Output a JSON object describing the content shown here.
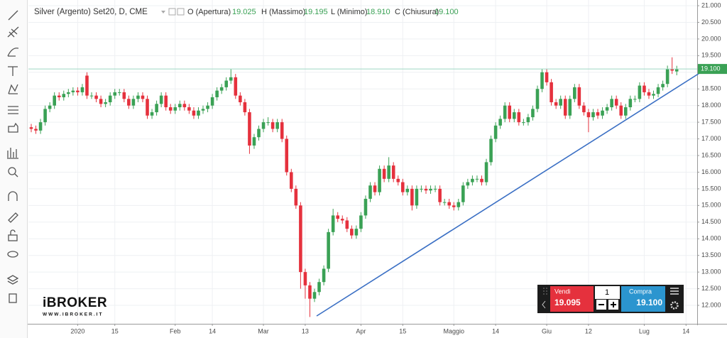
{
  "chart_data": {
    "type": "candlestick",
    "title": "Silver (Argento) Set20, D, CME",
    "ohlc_legend": [
      {
        "label": "O (Apertura)",
        "value": "19.025"
      },
      {
        "label": "H (Massimo)",
        "value": "19.195"
      },
      {
        "label": "L (Minimo)",
        "value": "18.910"
      },
      {
        "label": "C (Chiusura)",
        "value": "19.100"
      }
    ],
    "up_color": "#3aa155",
    "down_color": "#e5313d",
    "open": [
      17.35,
      17.3,
      17.25,
      17.5,
      17.9,
      18.0,
      18.3,
      18.25,
      18.35,
      18.4,
      18.45,
      18.4,
      18.9,
      18.3,
      18.3,
      18.2,
      18.05,
      18.1,
      18.3,
      18.4,
      18.4,
      18.2,
      18.0,
      18.2,
      18.3,
      18.2,
      17.7,
      17.8,
      18.05,
      18.3,
      17.95,
      17.85,
      17.95,
      18.05,
      17.95,
      17.85,
      17.7,
      17.85,
      17.9,
      18.0,
      18.25,
      18.45,
      18.55,
      18.75,
      18.85,
      18.3,
      18.1,
      17.8,
      16.8,
      17.05,
      17.3,
      17.5,
      17.5,
      17.3,
      17.5,
      17.0,
      16.0,
      15.5,
      15.0,
      13.0,
      12.6,
      12.2,
      12.4,
      12.7,
      13.1,
      14.2,
      14.7,
      14.6,
      14.55,
      14.3,
      14.1,
      14.3,
      14.7,
      15.2,
      15.6,
      15.4,
      16.1,
      15.8,
      16.2,
      15.8,
      15.7,
      15.4,
      15.5,
      15.0,
      15.5,
      15.5,
      15.45,
      15.5,
      15.5,
      15.1,
      15.1,
      15.0,
      14.95,
      15.1,
      15.6,
      15.7,
      15.8,
      15.8,
      15.7,
      16.3,
      17.0,
      17.4,
      17.6,
      18.0,
      17.6,
      17.8,
      17.5,
      17.5,
      17.65,
      17.9,
      18.5,
      19.0,
      18.7,
      18.1,
      18.0,
      18.2,
      17.7,
      18.2,
      18.55,
      18.0,
      17.8,
      17.65,
      17.8,
      17.7,
      17.85,
      17.95,
      18.2,
      18.0,
      17.7,
      17.95,
      18.2,
      18.2,
      18.6,
      18.4,
      18.3,
      18.35,
      18.55,
      18.65,
      19.1,
      19.025
    ],
    "high": [
      17.45,
      17.4,
      17.6,
      18.0,
      18.1,
      18.4,
      18.4,
      18.45,
      18.5,
      18.55,
      18.55,
      18.65,
      19.0,
      18.4,
      18.4,
      18.3,
      18.2,
      18.4,
      18.5,
      18.5,
      18.5,
      18.3,
      18.3,
      18.4,
      18.4,
      18.3,
      17.9,
      18.15,
      18.4,
      18.4,
      18.05,
      18.05,
      18.15,
      18.15,
      18.05,
      17.95,
      17.95,
      18.0,
      18.1,
      18.35,
      18.55,
      18.65,
      18.85,
      19.1,
      18.95,
      18.4,
      18.2,
      17.9,
      17.15,
      17.4,
      17.6,
      17.65,
      17.6,
      17.6,
      17.6,
      17.1,
      16.1,
      15.6,
      15.1,
      13.1,
      12.7,
      12.5,
      12.8,
      13.2,
      14.3,
      14.9,
      14.8,
      14.7,
      14.65,
      14.4,
      14.4,
      14.8,
      15.3,
      15.7,
      15.7,
      16.2,
      16.2,
      16.45,
      16.3,
      15.9,
      15.8,
      15.6,
      15.6,
      15.6,
      15.6,
      15.6,
      15.6,
      15.6,
      15.6,
      15.2,
      15.2,
      15.1,
      15.2,
      15.7,
      15.8,
      15.9,
      15.9,
      15.9,
      16.4,
      17.1,
      17.5,
      17.7,
      18.1,
      18.1,
      17.9,
      17.9,
      17.6,
      17.75,
      18.0,
      18.6,
      19.1,
      19.1,
      18.8,
      18.2,
      18.3,
      18.3,
      18.3,
      18.65,
      18.65,
      18.1,
      17.9,
      17.9,
      17.9,
      17.95,
      18.05,
      18.3,
      18.3,
      18.1,
      18.05,
      18.3,
      18.3,
      18.7,
      18.7,
      18.5,
      18.45,
      18.65,
      18.75,
      19.2,
      19.45,
      19.195
    ],
    "low": [
      17.2,
      17.15,
      17.15,
      17.4,
      17.8,
      17.9,
      18.15,
      18.15,
      18.25,
      18.3,
      18.3,
      18.3,
      18.2,
      18.2,
      18.1,
      17.95,
      17.95,
      18.0,
      18.2,
      18.3,
      18.1,
      17.9,
      17.9,
      18.1,
      18.1,
      17.6,
      17.6,
      17.7,
      17.95,
      17.85,
      17.75,
      17.75,
      17.85,
      17.85,
      17.75,
      17.6,
      17.6,
      17.75,
      17.8,
      17.9,
      18.15,
      18.35,
      18.45,
      18.65,
      18.2,
      18.0,
      17.7,
      16.55,
      16.7,
      16.95,
      17.2,
      17.4,
      17.2,
      17.2,
      16.9,
      15.9,
      15.4,
      14.9,
      12.5,
      12.2,
      11.65,
      12.1,
      12.3,
      12.6,
      13.0,
      14.1,
      14.5,
      14.45,
      14.2,
      14.0,
      14.0,
      14.2,
      14.6,
      15.1,
      15.3,
      15.3,
      15.7,
      15.7,
      15.7,
      15.6,
      15.3,
      15.3,
      14.85,
      14.9,
      15.4,
      15.35,
      15.35,
      15.4,
      15.0,
      15.0,
      14.9,
      14.85,
      14.85,
      15.0,
      15.5,
      15.6,
      15.7,
      15.6,
      15.6,
      16.2,
      16.9,
      17.3,
      17.5,
      17.5,
      17.5,
      17.4,
      17.4,
      17.4,
      17.55,
      17.8,
      18.4,
      18.6,
      18.0,
      17.9,
      17.9,
      17.6,
      17.6,
      18.1,
      17.9,
      17.7,
      17.2,
      17.55,
      17.6,
      17.6,
      17.75,
      17.85,
      17.9,
      17.6,
      17.6,
      17.85,
      18.1,
      18.1,
      18.3,
      18.2,
      18.2,
      18.25,
      18.45,
      18.55,
      18.95,
      18.91
    ],
    "close": [
      17.3,
      17.25,
      17.5,
      17.9,
      18.0,
      18.3,
      18.25,
      18.35,
      18.4,
      18.45,
      18.4,
      18.55,
      18.3,
      18.3,
      18.2,
      18.05,
      18.1,
      18.3,
      18.4,
      18.4,
      18.2,
      18.0,
      18.2,
      18.3,
      18.2,
      17.7,
      17.8,
      18.05,
      18.3,
      17.95,
      17.85,
      17.95,
      18.05,
      17.95,
      17.85,
      17.7,
      17.85,
      17.9,
      18.0,
      18.25,
      18.45,
      18.55,
      18.75,
      18.85,
      18.3,
      18.1,
      17.8,
      16.8,
      17.05,
      17.3,
      17.5,
      17.5,
      17.3,
      17.5,
      17.0,
      16.0,
      15.5,
      15.0,
      13.0,
      12.6,
      12.2,
      12.4,
      12.7,
      13.1,
      14.2,
      14.7,
      14.6,
      14.55,
      14.3,
      14.1,
      14.3,
      14.7,
      15.2,
      15.6,
      15.4,
      16.1,
      15.8,
      16.2,
      15.8,
      15.7,
      15.4,
      15.5,
      15.0,
      15.5,
      15.5,
      15.45,
      15.5,
      15.5,
      15.1,
      15.1,
      15.0,
      14.95,
      15.1,
      15.6,
      15.7,
      15.8,
      15.8,
      15.7,
      16.3,
      17.0,
      17.4,
      17.6,
      18.0,
      17.6,
      17.8,
      17.5,
      17.5,
      17.65,
      17.9,
      18.5,
      19.0,
      18.7,
      18.1,
      18.0,
      18.2,
      17.7,
      18.2,
      18.55,
      18.0,
      17.8,
      17.65,
      17.8,
      17.7,
      17.85,
      17.95,
      18.2,
      18.0,
      17.7,
      17.95,
      18.2,
      18.2,
      18.6,
      18.4,
      18.3,
      18.35,
      18.55,
      18.65,
      19.1,
      19.05,
      19.1
    ],
    "xlim": [
      -0.61,
      143.4
    ],
    "xticks": [
      {
        "value": 10,
        "label": "2020"
      },
      {
        "value": 18,
        "label": "15"
      },
      {
        "value": 31,
        "label": "Feb"
      },
      {
        "value": 39,
        "label": "14"
      },
      {
        "value": 50,
        "label": "Mar"
      },
      {
        "value": 59,
        "label": "13"
      },
      {
        "value": 71,
        "label": "Apr"
      },
      {
        "value": 80,
        "label": "15"
      },
      {
        "value": 91,
        "label": "Maggio"
      },
      {
        "value": 100,
        "label": "14"
      },
      {
        "value": 111,
        "label": "Giu"
      },
      {
        "value": 120,
        "label": "12"
      },
      {
        "value": 132,
        "label": "Lug"
      },
      {
        "value": 141,
        "label": "14"
      }
    ],
    "ylim": [
      11.446,
      21.171
    ],
    "yticks": [
      {
        "value": 12,
        "label": "12.000"
      },
      {
        "value": 12.5,
        "label": "12.500"
      },
      {
        "value": 13,
        "label": "13.000"
      },
      {
        "value": 13.5,
        "label": "13.500"
      },
      {
        "value": 14,
        "label": "14.000"
      },
      {
        "value": 14.5,
        "label": "14.500"
      },
      {
        "value": 15,
        "label": "15.000"
      },
      {
        "value": 15.5,
        "label": "15.500"
      },
      {
        "value": 16,
        "label": "16.000"
      },
      {
        "value": 16.5,
        "label": "16.500"
      },
      {
        "value": 17,
        "label": "17.000"
      },
      {
        "value": 17.5,
        "label": "17.500"
      },
      {
        "value": 18,
        "label": "18.000"
      },
      {
        "value": 18.5,
        "label": "18.500"
      },
      {
        "value": 19,
        "label": "19.000"
      },
      {
        "value": 19.5,
        "label": "19.500"
      },
      {
        "value": 20,
        "label": "20.000"
      },
      {
        "value": 20.5,
        "label": "20.500"
      },
      {
        "value": 21,
        "label": "21.000"
      }
    ],
    "grid": true,
    "price_line": {
      "value": 19.1,
      "label": "19.100",
      "color": "#3aa155"
    }
  },
  "logo": {
    "name": "iBROKER",
    "url": "WWW.IBROKER.IT"
  },
  "trade_panel": {
    "sell_label": "Vendi",
    "sell_price": "19.095",
    "quantity": "1",
    "buy_label": "Compra",
    "buy_price": "19.100"
  }
}
